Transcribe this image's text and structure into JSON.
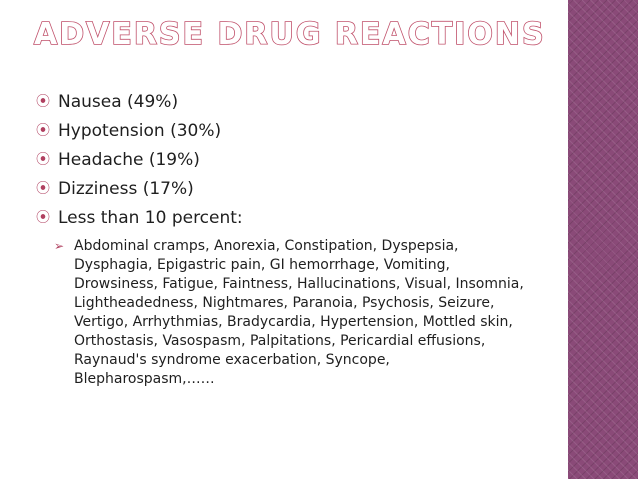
{
  "slide": {
    "title": "ADVERSE DRUG REACTIONS",
    "bullets": [
      "Nausea (49%)",
      "Hypotension (30%)",
      "Headache (19%)",
      "Dizziness (17%)",
      "Less than 10 percent:"
    ],
    "sub_bullet": "Abdominal cramps, Anorexia, Constipation, Dyspepsia, Dysphagia, Epigastric pain, GI hemorrhage, Vomiting, Drowsiness, Fatigue, Faintness, Hallucinations, Visual, Insomnia, Lightheadedness, Nightmares, Paranoia, Psychosis, Seizure, Vertigo, Arrhythmias, Bradycardia, Hypertension, Mottled skin, Orthostasis, Vasospasm, Palpitations, Pericardial effusions, Raynaud's syndrome exacerbation, Syncope, Blepharospasm,……",
    "bullet_icon": "target-bullet-icon",
    "sub_bullet_icon": "arrowhead-bullet-icon",
    "colors": {
      "accent": "#c0506a",
      "side_band": "#8a4a78",
      "text": "#1f1f1f"
    }
  }
}
